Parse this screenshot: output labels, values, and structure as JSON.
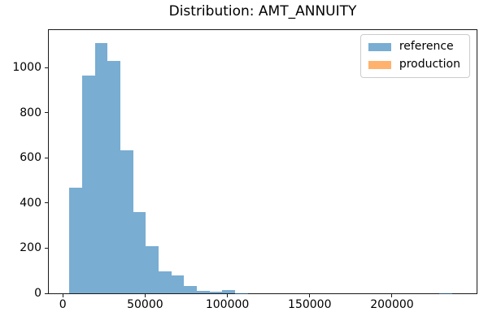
{
  "chart_data": {
    "type": "bar",
    "subtype": "histogram",
    "title": "Distribution: AMT_ANNUITY",
    "xlabel": "",
    "ylabel": "",
    "bin_start": 3950,
    "bin_width": 7750,
    "bin_count": 30,
    "series": [
      {
        "name": "reference",
        "color": "#1f77b4",
        "alpha": 0.6,
        "values": [
          470,
          965,
          1110,
          1030,
          635,
          360,
          210,
          97,
          80,
          33,
          11,
          6,
          15,
          1,
          0,
          0,
          0,
          0,
          0,
          0,
          0,
          0,
          0,
          0,
          0,
          0,
          0,
          0,
          0,
          1
        ]
      },
      {
        "name": "production",
        "color": "#ff7f0e",
        "alpha": 0.6,
        "values": [
          0,
          0,
          0,
          0,
          0,
          0,
          0,
          0,
          0,
          0,
          0,
          0,
          0,
          0,
          0,
          0,
          0,
          0,
          0,
          0,
          0,
          0,
          0,
          0,
          0,
          0,
          0,
          0,
          0,
          0
        ]
      }
    ],
    "xticks": [
      0,
      50000,
      100000,
      150000,
      200000
    ],
    "yticks": [
      0,
      200,
      400,
      600,
      800,
      1000
    ],
    "xlim": [
      -8500,
      251400
    ],
    "ylim": [
      0,
      1167
    ],
    "grid": false,
    "legend_position": "upper right",
    "spine_color": "#1a1a1a"
  }
}
